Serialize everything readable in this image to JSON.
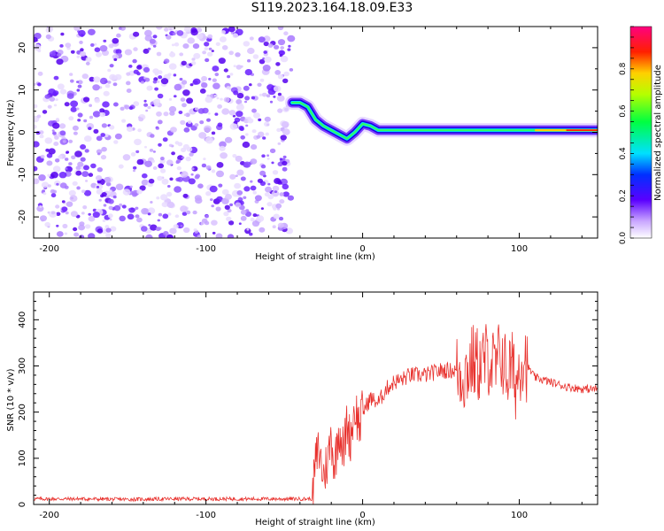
{
  "figure": {
    "title": "S119.2023.164.18.09.E33"
  },
  "chart_data": [
    {
      "type": "heatmap",
      "xlabel": "Height of straight line (km)",
      "ylabel": "Frequency (Hz)",
      "xlim": [
        -210,
        150
      ],
      "ylim": [
        -25,
        25
      ],
      "xticks": [
        -200,
        -100,
        0,
        100
      ],
      "yticks": [
        -20,
        -10,
        0,
        10,
        20
      ],
      "grid": false,
      "noise_region_x": [
        -210,
        -45
      ],
      "ridge_curve": {
        "x": [
          -45,
          -40,
          -35,
          -30,
          -25,
          -20,
          -15,
          -10,
          -5,
          0,
          5,
          10,
          20,
          30,
          40,
          50,
          60,
          70,
          80,
          90,
          100,
          110,
          120,
          130,
          140,
          150
        ],
        "y": [
          7,
          7,
          6,
          3,
          1.5,
          0.5,
          -0.5,
          -1.5,
          0,
          2,
          1.5,
          0.5,
          0.5,
          0.5,
          0.5,
          0.5,
          0.5,
          0.5,
          0.5,
          0.5,
          0.5,
          0.5,
          0.5,
          0.5,
          0.5,
          0.5
        ]
      },
      "colorbar": {
        "label": "Normalized spectral amplitude",
        "range": [
          0,
          1
        ],
        "ticks": [
          0.0,
          0.2,
          0.4,
          0.6,
          0.8
        ],
        "tick_labels": [
          "0.0",
          "0.2",
          "0.4",
          "0.6",
          "0.8"
        ]
      }
    },
    {
      "type": "line",
      "xlabel": "Height of straight line (km)",
      "ylabel": "SNR (10 * v/v)",
      "xlim": [
        -210,
        150
      ],
      "ylim": [
        0,
        460
      ],
      "xticks": [
        -200,
        -100,
        0,
        100
      ],
      "yticks": [
        0,
        100,
        200,
        300,
        400
      ],
      "grid": false,
      "series": [
        {
          "color": "#e8322e",
          "x": [
            -210,
            -180,
            -150,
            -120,
            -90,
            -60,
            -40,
            -32,
            -31,
            -30,
            -28,
            -25,
            -22,
            -20,
            -18,
            -15,
            -12,
            -10,
            -8,
            -5,
            -2,
            0,
            5,
            10,
            15,
            20,
            25,
            30,
            40,
            50,
            60,
            65,
            70,
            75,
            80,
            85,
            88,
            90,
            92,
            95,
            98,
            100,
            103,
            105,
            110,
            120,
            130,
            140,
            150
          ],
          "y": [
            12,
            12,
            11,
            12,
            12,
            12,
            12,
            12,
            60,
            90,
            120,
            60,
            100,
            150,
            80,
            170,
            110,
            180,
            140,
            210,
            170,
            200,
            230,
            220,
            250,
            265,
            270,
            280,
            280,
            290,
            290,
            280,
            310,
            300,
            320,
            290,
            330,
            310,
            280,
            300,
            260,
            300,
            330,
            300,
            275,
            265,
            255,
            250,
            250
          ]
        }
      ]
    }
  ]
}
